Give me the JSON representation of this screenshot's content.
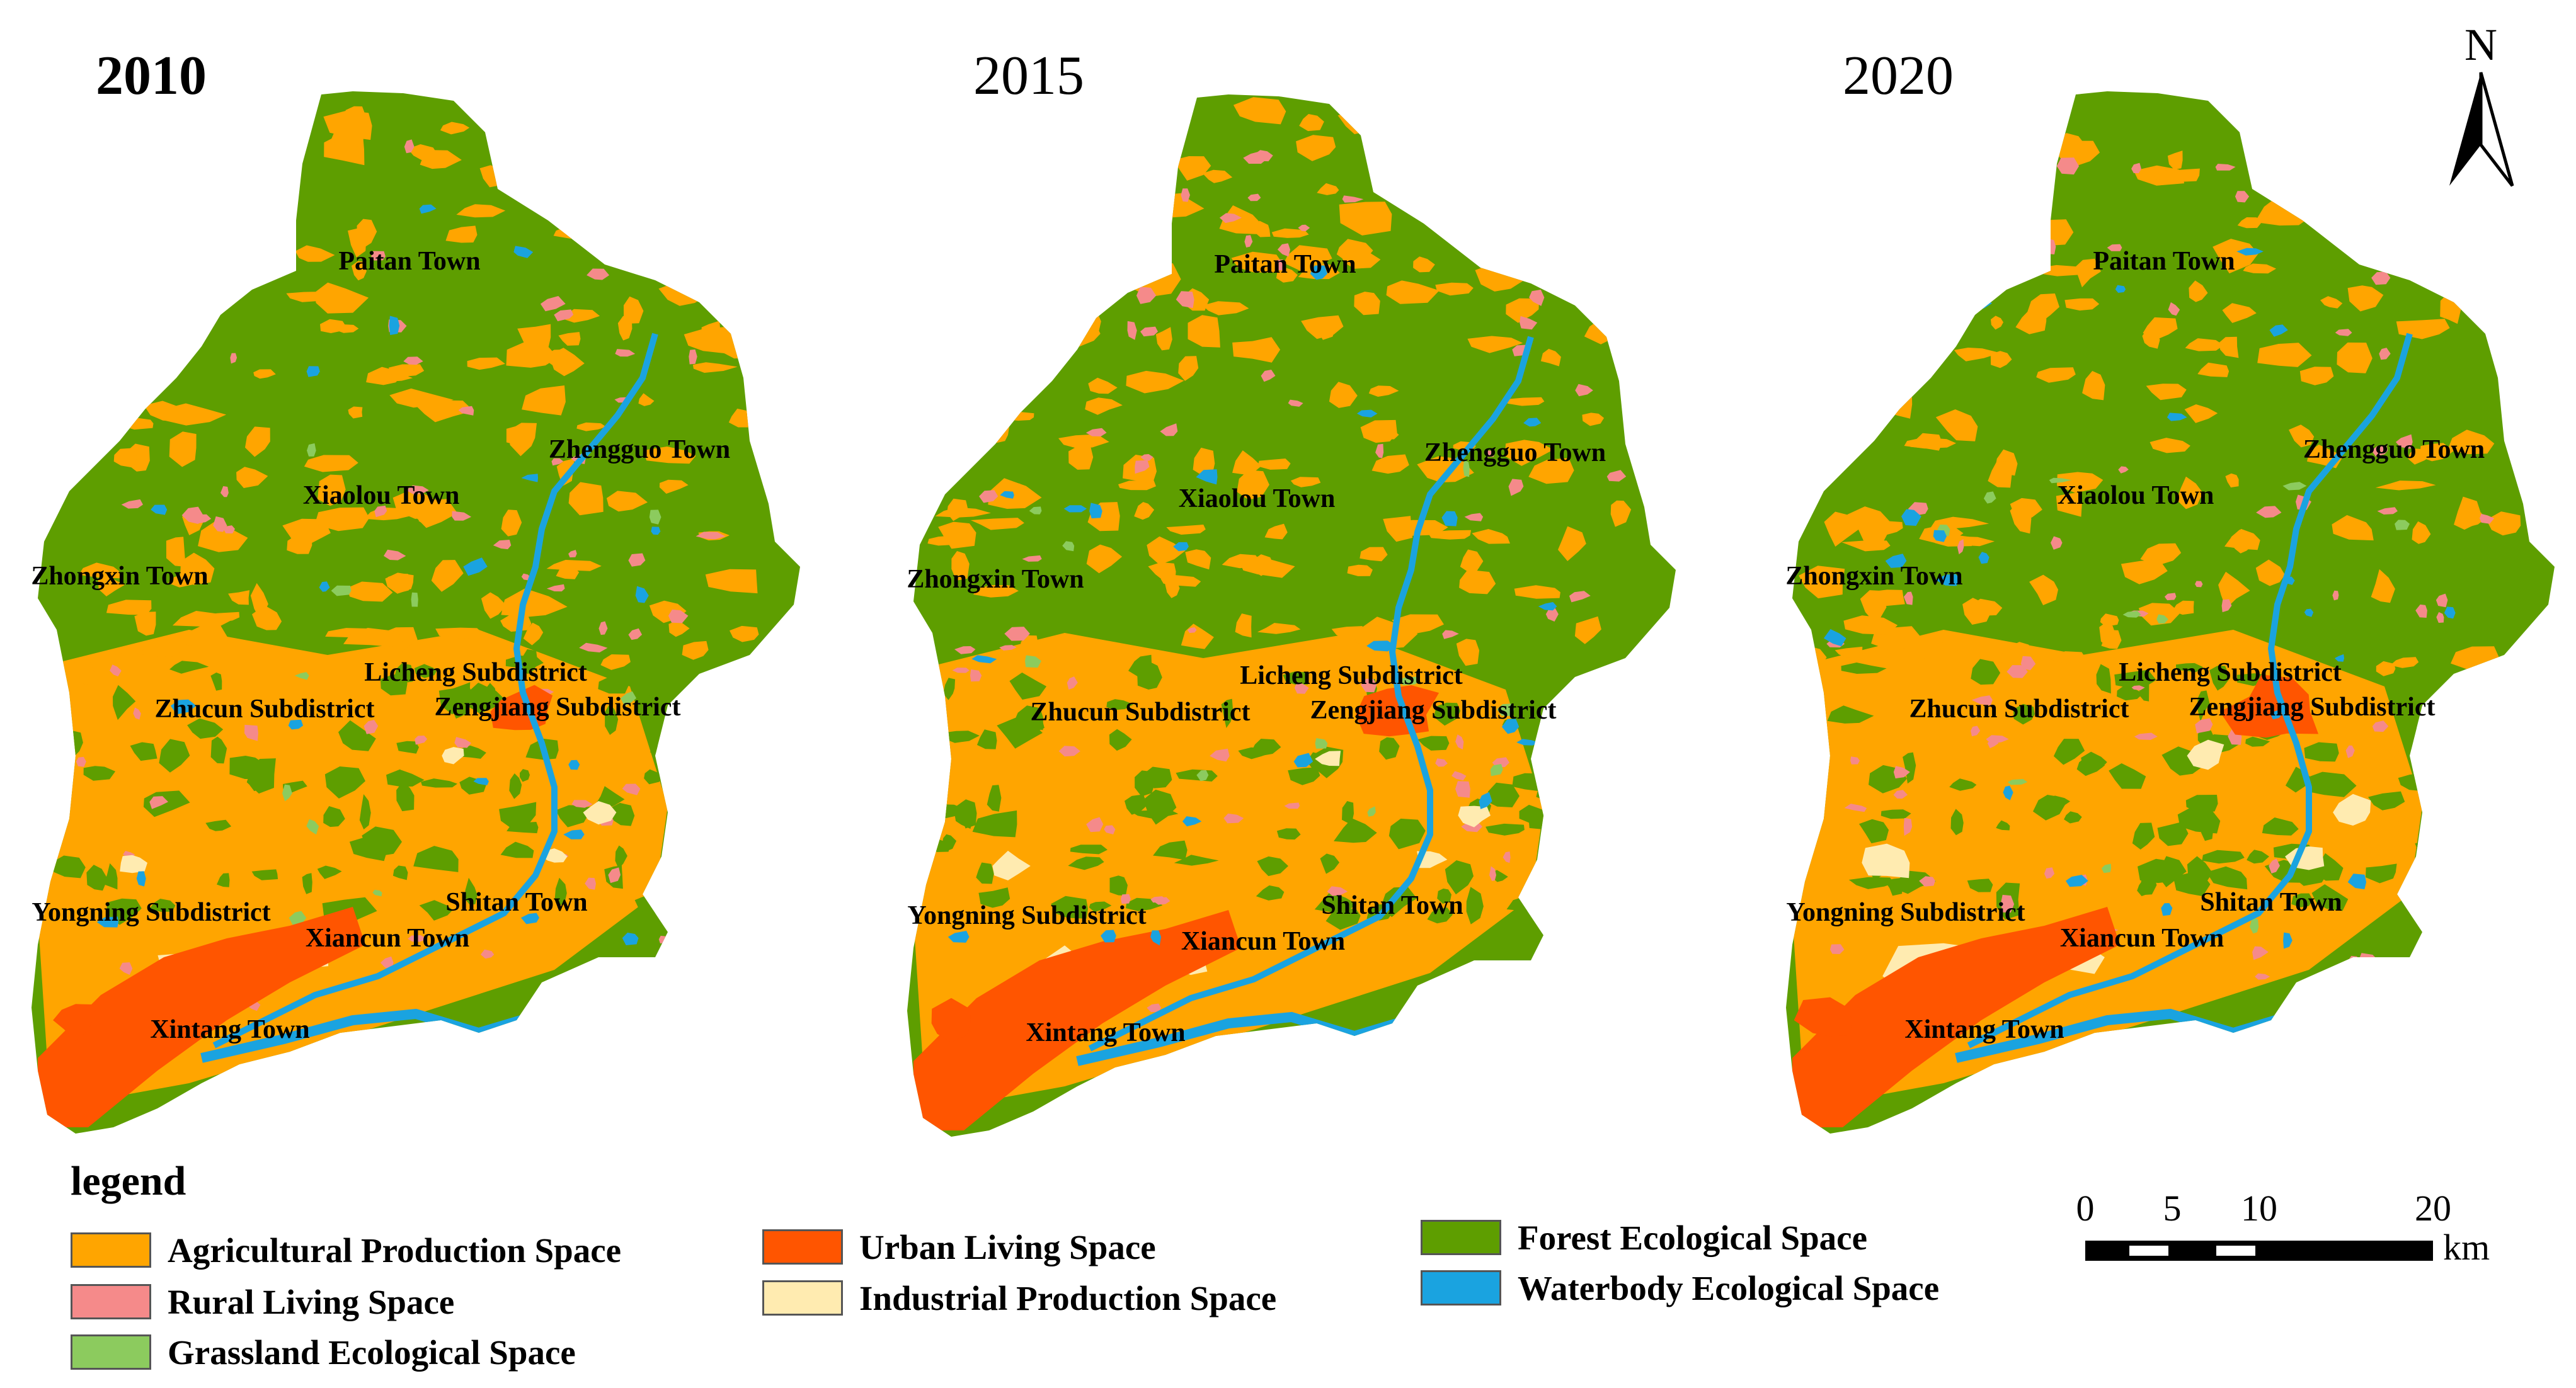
{
  "panels": [
    {
      "year": "2010",
      "bold": true
    },
    {
      "year": "2015",
      "bold": false
    },
    {
      "year": "2020",
      "bold": false
    }
  ],
  "towns": [
    "Paitan Town",
    "Zhengguo Town",
    "Xiaolou Town",
    "Zhongxin Town",
    "Licheng Subdistrict",
    "Zhucun Subdistrict",
    "Zengjiang Subdistrict",
    "Yongning Subdistrict",
    "Shitan Town",
    "Xiancun Town",
    "Xintang Town"
  ],
  "legend": {
    "title": "legend",
    "items": [
      {
        "label": "Agricultural Production Space",
        "color": "#FFA500"
      },
      {
        "label": "Rural Living Space",
        "color": "#F58A8A"
      },
      {
        "label": "Grassland Ecological Space",
        "color": "#8CCB5E"
      },
      {
        "label": "Urban Living Space",
        "color": "#FF5500"
      },
      {
        "label": "Industrial Production Space",
        "color": "#FFEBB0"
      },
      {
        "label": "Forest Ecological Space",
        "color": "#5E9E00"
      },
      {
        "label": "Waterbody Ecological Space",
        "color": "#1AA3E0"
      }
    ]
  },
  "north_arrow": {
    "label": "N"
  },
  "scale_bar": {
    "ticks": [
      "0",
      "5",
      "10",
      "20"
    ],
    "unit": "km"
  }
}
